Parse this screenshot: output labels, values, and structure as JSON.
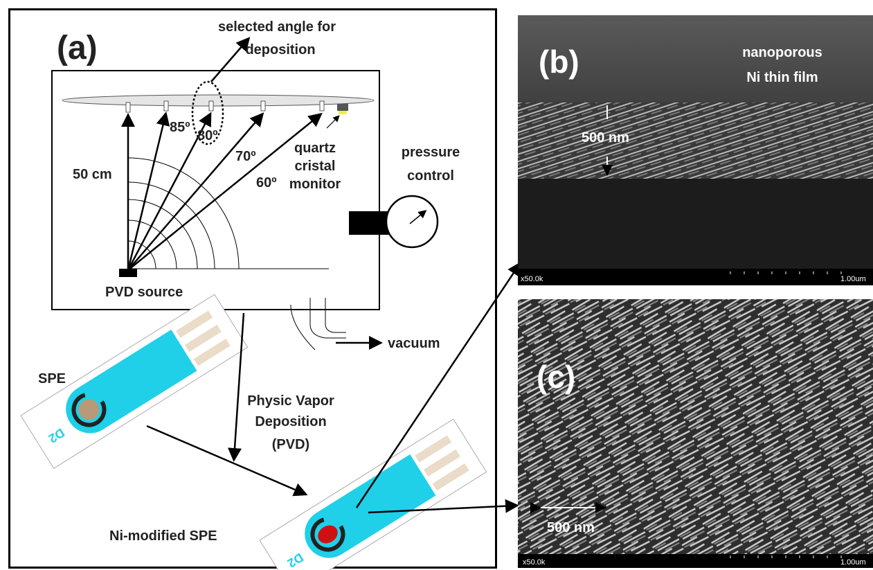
{
  "panel_a": {
    "label": "(a)",
    "selected_angle": [
      "selected angle for",
      "deposition"
    ],
    "angles": [
      "85º",
      "80º",
      "70º",
      "60º"
    ],
    "distance": "50 cm",
    "quartz_monitor": [
      "quartz",
      "cristal",
      "monitor"
    ],
    "pressure_control": [
      "pressure",
      "control"
    ],
    "source": "PVD source",
    "vacuum": "vacuum",
    "spe": "SPE",
    "spe_code": "D2",
    "pvd": [
      "Physic Vapor",
      "Deposition",
      "(PVD)"
    ],
    "ni_spe": "Ni-modified SPE",
    "ni_spe_code": "D2"
  },
  "panel_b": {
    "label": "(b)",
    "film": [
      "nanoporous",
      "Ni thin film"
    ],
    "thickness": "500 nm",
    "magnification": "x50.0k",
    "scale": "1.00um"
  },
  "panel_c": {
    "label": "(c)",
    "scale_bar": "500 nm",
    "magnification": "x50.0k",
    "scale": "1.00um"
  }
}
